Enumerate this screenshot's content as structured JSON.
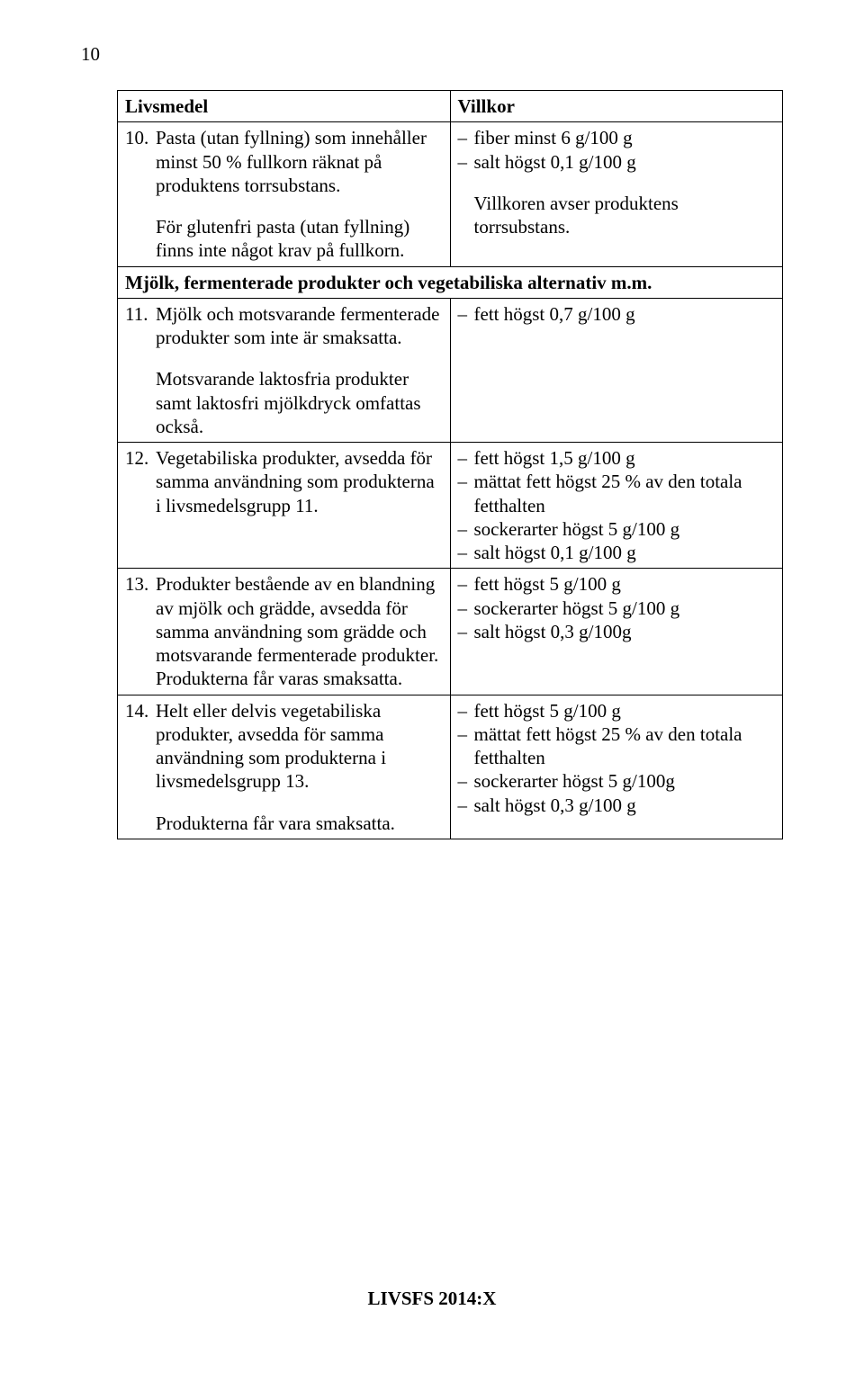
{
  "page_number": "10",
  "footer": "LIVSFS 2014:X",
  "headers": {
    "left": "Livsmedel",
    "right": "Villkor"
  },
  "rows": [
    {
      "num": "10.",
      "left_p1": "Pasta (utan fyllning) som innehåller minst 50 % fullkorn räknat på produktens torrsubstans.",
      "left_p2": "För glutenfri pasta (utan fyllning) finns inte något krav på fullkorn.",
      "villkor": [
        "fiber minst 6 g/100 g",
        "salt högst 0,1 g/100 g"
      ],
      "note": "Villkoren avser produktens torrsubstans."
    }
  ],
  "section_header": "Mjölk, fermenterade produkter och vegetabiliska alternativ m.m.",
  "rows2": [
    {
      "num": "11.",
      "left_p1": "Mjölk och motsvarande fermenterade produkter som inte är smaksatta.",
      "left_p2": "Motsvarande laktosfria produkter samt laktosfri mjölkdryck omfattas också.",
      "villkor": [
        "fett högst 0,7 g/100 g"
      ]
    },
    {
      "num": "12.",
      "left_p1": "Vegetabiliska produkter, avsedda för samma användning som produkterna i livsmedelsgrupp 11.",
      "villkor": [
        "fett högst 1,5 g/100 g",
        "mättat fett högst 25 % av den totala fetthalten",
        "sockerarter högst 5 g/100 g",
        "salt högst 0,1 g/100 g"
      ]
    },
    {
      "num": "13.",
      "left_p1": "Produkter bestående av en blandning av mjölk och grädde, avsedda för samma användning som grädde och motsvarande fermenterade produkter. Produkterna får varas smaksatta.",
      "villkor": [
        "fett högst 5 g/100 g",
        "sockerarter högst 5 g/100 g",
        "salt högst 0,3 g/100g"
      ]
    },
    {
      "num": "14.",
      "left_p1": "Helt eller delvis vegetabiliska produkter, avsedda för samma användning som produkterna i livsmedelsgrupp 13.",
      "left_p2": "Produkterna får vara smaksatta.",
      "villkor": [
        "fett högst 5 g/100 g",
        "mättat fett högst 25 % av den totala fetthalten",
        "sockerarter högst 5 g/100g",
        "salt högst 0,3 g/100 g"
      ]
    }
  ]
}
